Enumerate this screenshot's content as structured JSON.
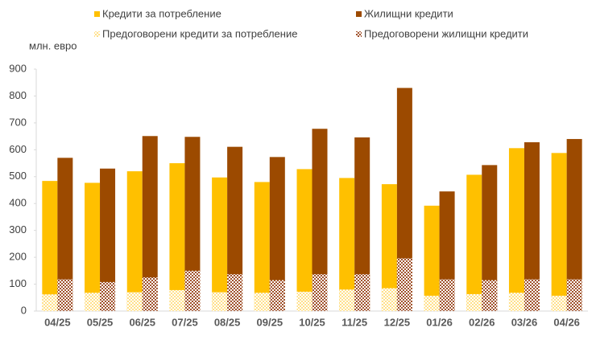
{
  "chart_data": {
    "type": "bar",
    "y_label": "млн. евро",
    "categories": [
      "04/25",
      "05/25",
      "06/25",
      "07/25",
      "08/25",
      "09/25",
      "10/25",
      "11/25",
      "12/25",
      "01/26",
      "02/26",
      "03/26",
      "04/26"
    ],
    "series": [
      {
        "name": "Кредити за потребление",
        "color": "#FFC000",
        "stack": 0,
        "pattern": false,
        "values": [
          484,
          477,
          520,
          550,
          497,
          480,
          528,
          495,
          472,
          392,
          507,
          606,
          588
        ]
      },
      {
        "name": "Жилищни кредити",
        "color": "#9C4A00",
        "stack": 1,
        "pattern": false,
        "values": [
          570,
          530,
          651,
          648,
          611,
          573,
          678,
          646,
          830,
          445,
          543,
          628,
          640
        ]
      },
      {
        "name": "Предоговорени кредити за потребление",
        "color": "#FFE08A",
        "stack": 0,
        "pattern": true,
        "values": [
          62,
          68,
          70,
          78,
          70,
          68,
          72,
          80,
          85,
          57,
          63,
          68,
          57
        ]
      },
      {
        "name": "Предоговорени жилищни кредити",
        "color": "#A0522D",
        "stack": 1,
        "pattern": true,
        "values": [
          118,
          108,
          125,
          150,
          137,
          115,
          137,
          137,
          196,
          118,
          115,
          118,
          118
        ]
      }
    ],
    "ylim": [
      0,
      900
    ],
    "yticks": [
      0,
      100,
      200,
      300,
      400,
      500,
      600,
      700,
      800,
      900
    ],
    "grid": false
  }
}
